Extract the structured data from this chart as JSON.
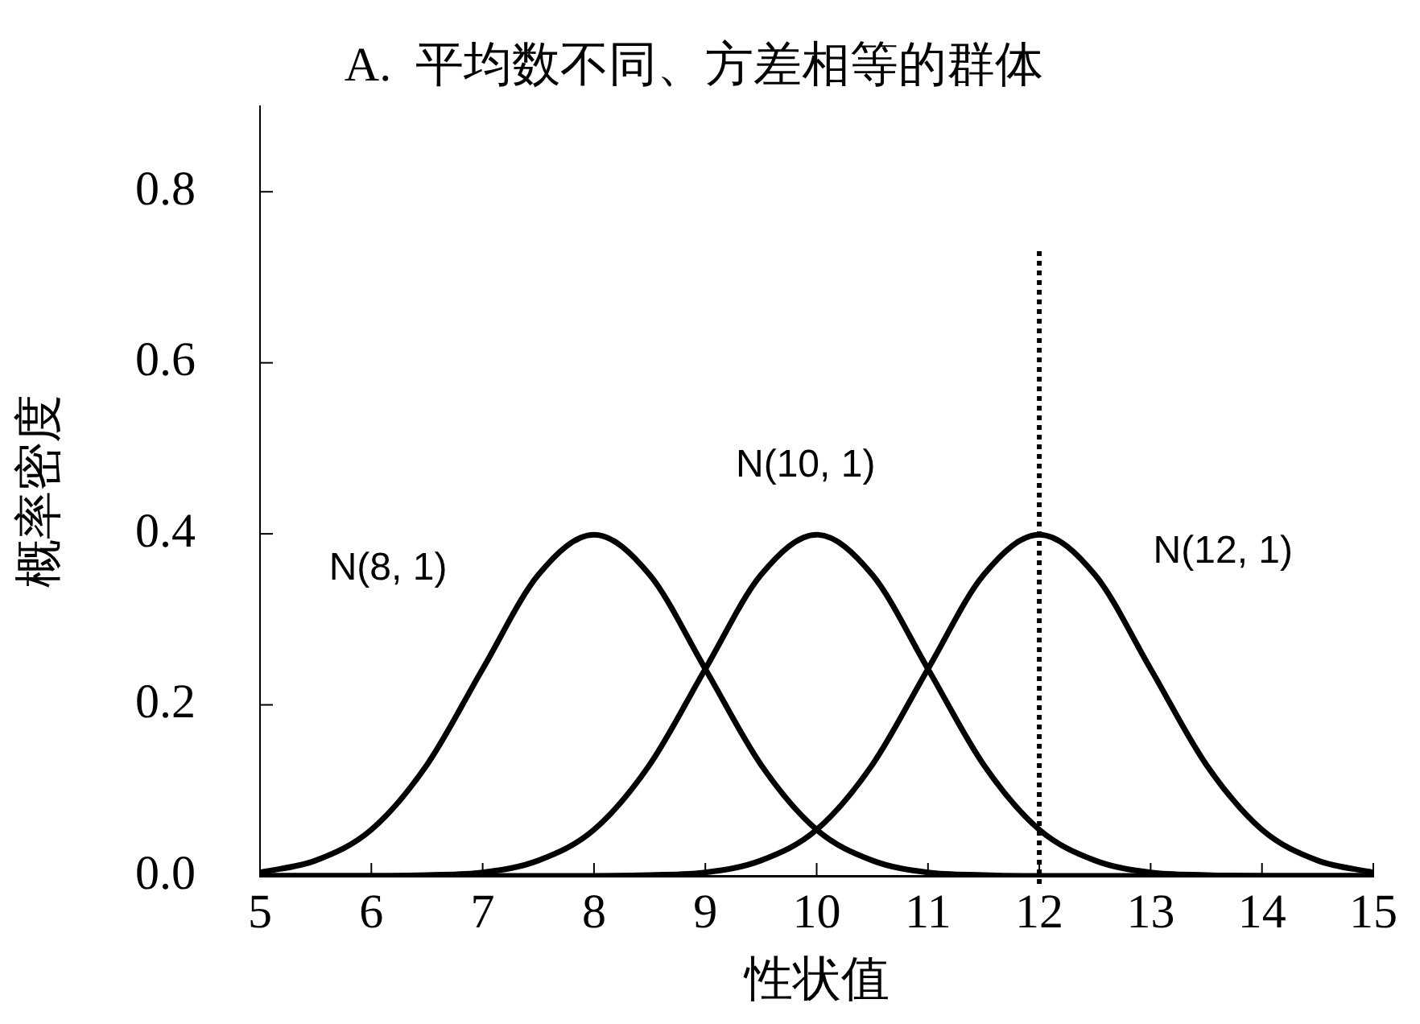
{
  "chart_data": {
    "type": "line",
    "title": "A.  平均数不同、方差相等的群体",
    "xlabel": "性状值",
    "ylabel": "概率密度",
    "x": [
      5,
      5.5,
      6,
      6.5,
      7,
      7.5,
      8,
      8.5,
      9,
      9.5,
      10,
      10.5,
      11,
      11.5,
      12,
      12.5,
      13,
      13.5,
      14,
      14.5,
      15
    ],
    "series": [
      {
        "name": "N(8, 1)",
        "color": "#000000",
        "values": [
          0.004,
          0.018,
          0.054,
          0.13,
          0.242,
          0.352,
          0.399,
          0.352,
          0.242,
          0.13,
          0.054,
          0.018,
          0.004,
          0.001,
          0,
          0,
          0,
          0,
          0,
          0,
          0
        ]
      },
      {
        "name": "N(10, 1)",
        "color": "#000000",
        "values": [
          0,
          0,
          0,
          0.001,
          0.004,
          0.018,
          0.054,
          0.13,
          0.242,
          0.352,
          0.399,
          0.352,
          0.242,
          0.13,
          0.054,
          0.018,
          0.004,
          0.001,
          0,
          0,
          0
        ]
      },
      {
        "name": "N(12, 1)",
        "color": "#000000",
        "values": [
          0,
          0,
          0,
          0,
          0,
          0,
          0,
          0.001,
          0.004,
          0.018,
          0.054,
          0.13,
          0.242,
          0.352,
          0.399,
          0.352,
          0.242,
          0.13,
          0.054,
          0.018,
          0.004
        ]
      }
    ],
    "xlim": [
      5,
      15
    ],
    "xticks": [
      5,
      6,
      7,
      8,
      9,
      10,
      11,
      12,
      13,
      14,
      15
    ],
    "ylim": [
      0,
      0.9
    ],
    "yticks": [
      {
        "value": 0,
        "label": "0.0"
      },
      {
        "value": 0.2,
        "label": "0.2"
      },
      {
        "value": 0.4,
        "label": "0.4"
      },
      {
        "value": 0.6,
        "label": "0.6"
      },
      {
        "value": 0.8,
        "label": "0.8"
      }
    ],
    "ref_lines": [
      {
        "axis": "x",
        "value": 12,
        "line_style": "dotted",
        "color": "#000000"
      }
    ],
    "grid": false,
    "legend": false,
    "marker": "none",
    "line_style": "solid"
  }
}
